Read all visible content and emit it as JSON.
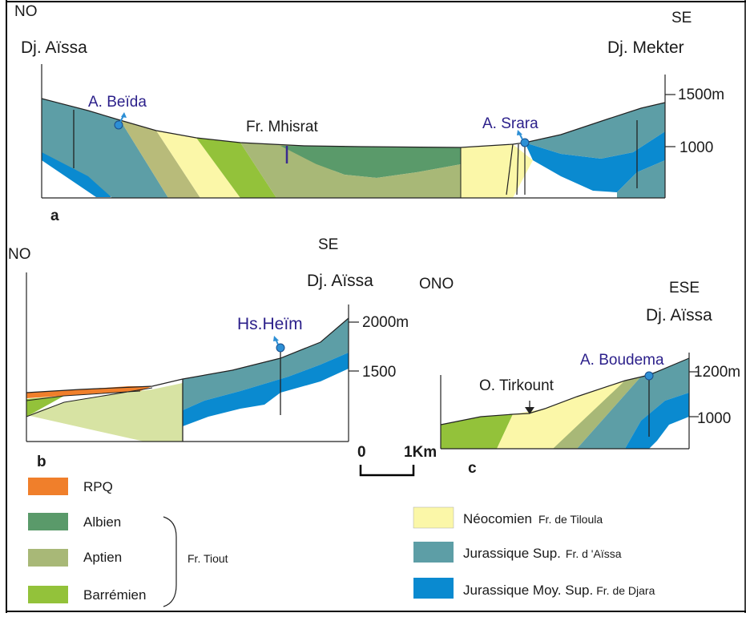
{
  "colors": {
    "rpq": "#f07f2b",
    "albien": "#5a9a6a",
    "aptien": "#a8b877",
    "barremien": "#93c23a",
    "neocomien": "#fbf7a8",
    "jur_sup": "#5d9ea6",
    "jur_moy": "#0a8ad0",
    "pale": "#d7e3a3",
    "spring": "#2d8fd5"
  },
  "sections": {
    "a": {
      "letter": "a",
      "left_dir": "NO",
      "right_dir": "SE",
      "left_place": "Dj. Aïssa",
      "right_place": "Dj. Mekter",
      "spring_left": "A. Beïda",
      "spring_right": "A. Srara",
      "formation": "Fr. Mhisrat",
      "scale_1500": "1500m",
      "scale_1000": "1000"
    },
    "b": {
      "letter": "b",
      "left_dir": "NO",
      "right_dir": "SE",
      "right_place": "Dj. Aïssa",
      "spring": "Hs.Heïm",
      "scale_2000": "2000m",
      "scale_1500": "1500"
    },
    "c": {
      "letter": "c",
      "left_dir": "ONO",
      "right_dir": "ESE",
      "right_place": "Dj. Aïssa",
      "spring": "A. Boudema",
      "river": "O. Tirkount",
      "scale_1200": "1200m",
      "scale_1000": "1000"
    }
  },
  "scale_bar": {
    "start": "0",
    "end": "1Km"
  },
  "legend": {
    "left": [
      {
        "name": "RPQ",
        "color_key": "rpq"
      },
      {
        "name": "Albien",
        "color_key": "albien"
      },
      {
        "name": "Aptien",
        "color_key": "aptien"
      },
      {
        "name": "Barrémien",
        "color_key": "barremien"
      }
    ],
    "group_label": "Fr. Tiout",
    "right": [
      {
        "name": "Néocomien",
        "formation": "Fr. de Tiloula"
      },
      {
        "name": "Jurassique Sup.",
        "formation": "Fr. d 'Aïssa"
      },
      {
        "name": "Jurassique Moy. Sup.",
        "formation": "Fr. de Djara"
      }
    ]
  }
}
